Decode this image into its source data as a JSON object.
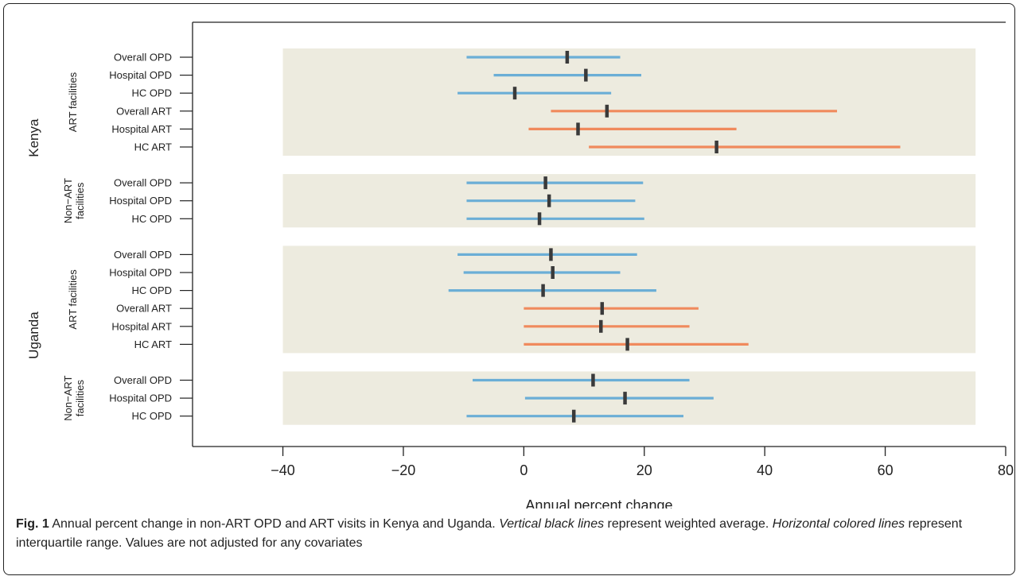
{
  "chart_data": {
    "type": "interval",
    "xlabel": "Annual percent change",
    "xlim": [
      -55,
      80
    ],
    "xticks": [
      -40,
      -20,
      0,
      20,
      40,
      60,
      80
    ],
    "xtick_labels": [
      "−40",
      "−20",
      "0",
      "20",
      "40",
      "60",
      "80"
    ],
    "panel_range": [
      -40,
      75
    ],
    "colors": {
      "opd": "#6baed6",
      "art": "#f08a5d",
      "mean": "#3a3a3a",
      "panel": "#edebdf"
    },
    "countries": [
      {
        "name": "Kenya",
        "groups": [
          {
            "name": "ART facilities",
            "rows": [
              {
                "label": "Overall OPD",
                "type": "opd",
                "low": -9.5,
                "high": 16,
                "mean": 7.2
              },
              {
                "label": "Hospital OPD",
                "type": "opd",
                "low": -5,
                "high": 19.5,
                "mean": 10.3
              },
              {
                "label": "HC OPD",
                "type": "opd",
                "low": -11,
                "high": 14.5,
                "mean": -1.5
              },
              {
                "label": "Overall ART",
                "type": "art",
                "low": 4.5,
                "high": 52,
                "mean": 13.8
              },
              {
                "label": "Hospital ART",
                "type": "art",
                "low": 0.8,
                "high": 35.3,
                "mean": 9
              },
              {
                "label": "HC ART",
                "type": "art",
                "low": 10.8,
                "high": 62.5,
                "mean": 32
              }
            ]
          },
          {
            "name": "Non−ART facilities",
            "rows": [
              {
                "label": "Overall OPD",
                "type": "opd",
                "low": -9.5,
                "high": 19.8,
                "mean": 3.6
              },
              {
                "label": "Hospital OPD",
                "type": "opd",
                "low": -9.5,
                "high": 18.5,
                "mean": 4.2
              },
              {
                "label": "HC OPD",
                "type": "opd",
                "low": -9.5,
                "high": 20,
                "mean": 2.6
              }
            ]
          }
        ]
      },
      {
        "name": "Uganda",
        "groups": [
          {
            "name": "ART facilities",
            "rows": [
              {
                "label": "Overall OPD",
                "type": "opd",
                "low": -11,
                "high": 18.8,
                "mean": 4.5
              },
              {
                "label": "Hospital OPD",
                "type": "opd",
                "low": -10,
                "high": 16,
                "mean": 4.8
              },
              {
                "label": "HC OPD",
                "type": "opd",
                "low": -12.5,
                "high": 22,
                "mean": 3.2
              },
              {
                "label": "Overall ART",
                "type": "art",
                "low": 0,
                "high": 29,
                "mean": 13
              },
              {
                "label": "Hospital ART",
                "type": "art",
                "low": 0,
                "high": 27.5,
                "mean": 12.8
              },
              {
                "label": "HC ART",
                "type": "art",
                "low": 0,
                "high": 37.3,
                "mean": 17.2
              }
            ]
          },
          {
            "name": "Non−ART facilities",
            "rows": [
              {
                "label": "Overall OPD",
                "type": "opd",
                "low": -8.5,
                "high": 27.5,
                "mean": 11.5
              },
              {
                "label": "Hospital OPD",
                "type": "opd",
                "low": 0.2,
                "high": 31.5,
                "mean": 16.8
              },
              {
                "label": "HC OPD",
                "type": "opd",
                "low": -9.5,
                "high": 26.5,
                "mean": 8.3
              }
            ]
          }
        ]
      }
    ]
  },
  "caption": {
    "fig_label": "Fig. 1",
    "text1": " Annual percent change in non-ART OPD and ART visits in Kenya and Uganda. ",
    "italic1": "Vertical black lines",
    "text2": " represent weighted average. ",
    "italic2": "Horizontal colored lines",
    "text3": " represent interquartile range. Values are not adjusted for any covariates"
  }
}
